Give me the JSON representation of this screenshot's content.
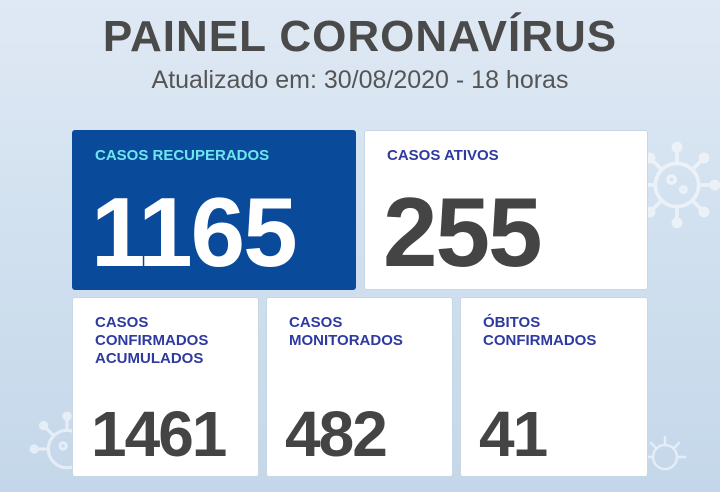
{
  "header": {
    "title": "PAINEL CORONAVÍRUS",
    "subtitle": "Atualizado em: 30/08/2020 - 18 horas"
  },
  "cards": [
    {
      "label_lines": [
        "CASOS RECUPERADOS"
      ],
      "value": "1165"
    },
    {
      "label_lines": [
        "CASOS ATIVOS"
      ],
      "value": "255"
    },
    {
      "label_lines": [
        "CASOS",
        "CONFIRMADOS",
        "ACUMULADOS"
      ],
      "value": "1461"
    },
    {
      "label_lines": [
        "CASOS",
        "MONITORADOS"
      ],
      "value": "482"
    },
    {
      "label_lines": [
        "ÓBITOS",
        "CONFIRMADOS"
      ],
      "value": "41"
    }
  ],
  "colors": {
    "primary_card": "#0a4a9b",
    "primary_label": "#6ee6f0",
    "label": "#2e3aa0",
    "value": "#444444",
    "title": "#4a4a4a"
  },
  "icons": [
    "virus-icon"
  ]
}
